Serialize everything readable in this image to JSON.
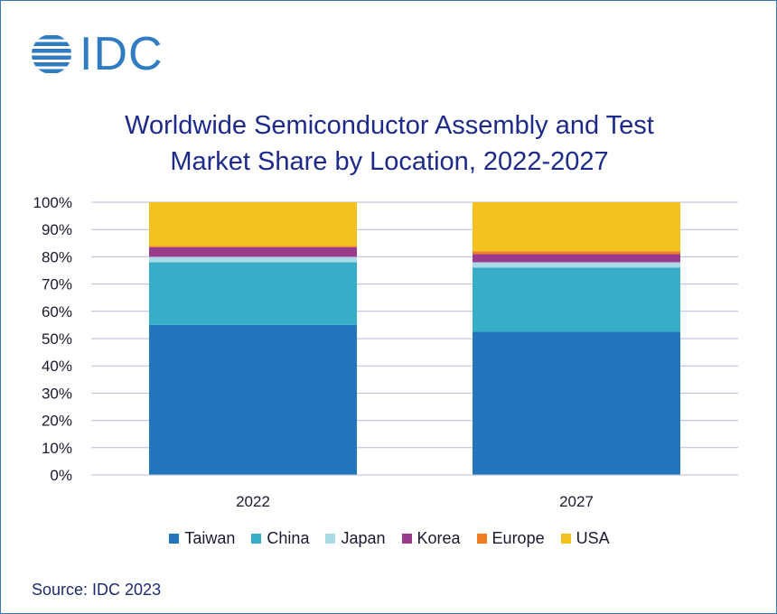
{
  "logo": {
    "text": "IDC"
  },
  "title": {
    "line1": "Worldwide Semiconductor Assembly and Test",
    "line2": "Market Share by Location, 2022-2027"
  },
  "source": "Source: IDC 2023",
  "chart_data": {
    "type": "bar",
    "stacked": true,
    "title": "Worldwide Semiconductor Assembly and Test Market Share by Location, 2022-2027",
    "xlabel": "",
    "ylabel": "",
    "categories": [
      "2022",
      "2027"
    ],
    "ylim": [
      0,
      100
    ],
    "yticks": [
      "0%",
      "10%",
      "20%",
      "30%",
      "40%",
      "50%",
      "60%",
      "70%",
      "80%",
      "90%",
      "100%"
    ],
    "grid": true,
    "legend_position": "bottom",
    "series": [
      {
        "name": "Taiwan",
        "color": "#2376bc",
        "values": [
          55,
          52.5
        ]
      },
      {
        "name": "China",
        "color": "#37adc7",
        "values": [
          23,
          23.5
        ]
      },
      {
        "name": "Japan",
        "color": "#a8dbe6",
        "values": [
          2,
          2
        ]
      },
      {
        "name": "Korea",
        "color": "#9a3a8a",
        "values": [
          3.5,
          3
        ]
      },
      {
        "name": "Europe",
        "color": "#ef7e21",
        "values": [
          0.5,
          1
        ]
      },
      {
        "name": "USA",
        "color": "#f3c220",
        "values": [
          16,
          18
        ]
      }
    ]
  }
}
